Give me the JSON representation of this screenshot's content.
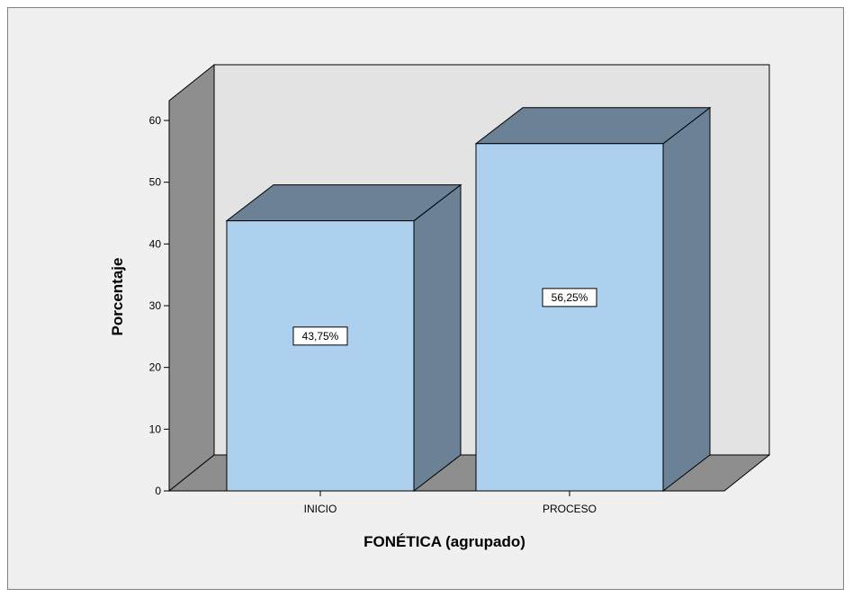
{
  "chart_data": {
    "type": "bar",
    "categories": [
      "INICIO",
      "PROCESO"
    ],
    "values": [
      43.75,
      56.25
    ],
    "data_labels": [
      "43,75%",
      "56,25%"
    ],
    "xlabel": "FONÉTICA (agrupado)",
    "ylabel": "Porcentaje",
    "ylim": [
      0,
      60
    ],
    "yticks": [
      "0",
      "10",
      "20",
      "30",
      "40",
      "50",
      "60"
    ],
    "style": "3d",
    "grid": false,
    "legend": "none"
  },
  "colors": {
    "bar_front": "#acd0ee",
    "bar_top": "#6b8196",
    "bar_side": "#6b8196",
    "back_wall": "#e3e3e3",
    "side_wall": "#8e8e8e",
    "floor": "#8e8e8e",
    "frame_bg": "#f0f0f0"
  }
}
